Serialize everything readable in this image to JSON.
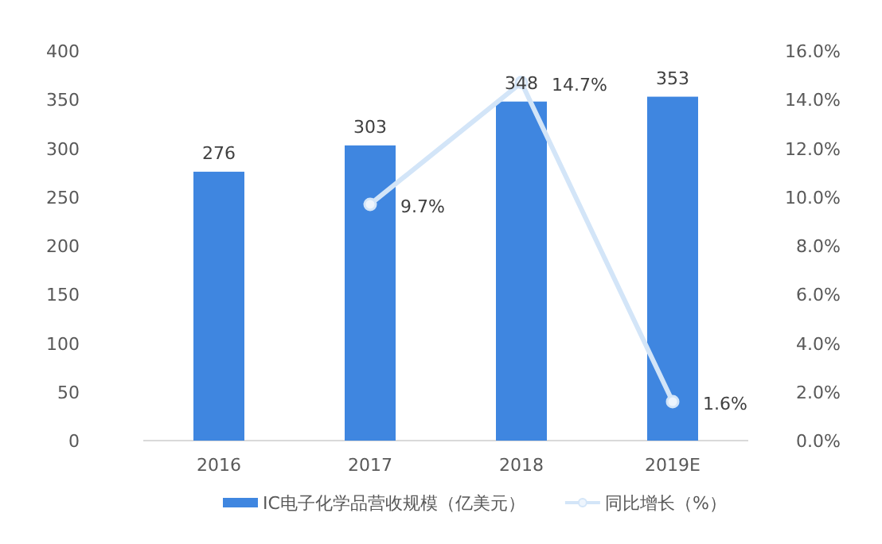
{
  "chart_data": {
    "type": "bar",
    "categories": [
      "2016",
      "2017",
      "2018",
      "2019E"
    ],
    "series": [
      {
        "name": "IC电子化学品营收规模（亿美元）",
        "color": "#3f86e0",
        "values": [
          276,
          303,
          348,
          353
        ],
        "value_labels": [
          "276",
          "303",
          "348",
          "353"
        ]
      },
      {
        "name": "同比增长（%）",
        "type": "line",
        "axis": "y2",
        "color": "#d3e5f8",
        "marker": "circle",
        "values": [
          null,
          9.7,
          14.7,
          1.6
        ],
        "value_labels": [
          null,
          "9.7%",
          "14.7%",
          "1.6%"
        ]
      }
    ],
    "ylim": [
      0,
      400
    ],
    "yticks": [
      0,
      50,
      100,
      150,
      200,
      250,
      300,
      350,
      400
    ],
    "y2lim": [
      0,
      16
    ],
    "y2ticks": [
      {
        "value": 0,
        "label": "0.0%"
      },
      {
        "value": 2,
        "label": "2.0%"
      },
      {
        "value": 4,
        "label": "4.0%"
      },
      {
        "value": 6,
        "label": "6.0%"
      },
      {
        "value": 8,
        "label": "8.0%"
      },
      {
        "value": 10,
        "label": "10.0%"
      },
      {
        "value": 12,
        "label": "12.0%"
      },
      {
        "value": 14,
        "label": "14.0%"
      },
      {
        "value": 16,
        "label": "16.0%"
      }
    ],
    "legend": "bottom"
  }
}
